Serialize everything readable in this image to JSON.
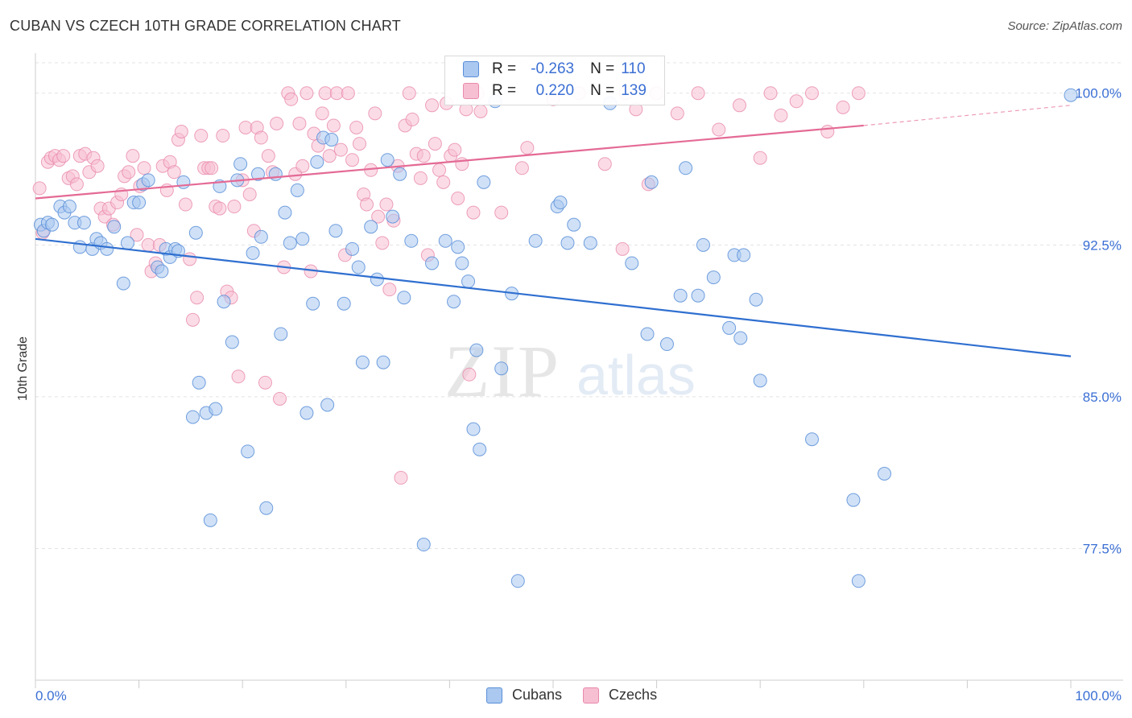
{
  "title": "CUBAN VS CZECH 10TH GRADE CORRELATION CHART",
  "source": "Source: ZipAtlas.com",
  "colors": {
    "cubans_fill": "#aac8f0",
    "cubans_stroke": "#5a8fd8",
    "cubans_line": "#2f6fd0",
    "czechs_fill": "#f7bfd2",
    "czechs_stroke": "#e98aad",
    "czechs_line": "#e46a95",
    "axis_label": "#3b6fd4",
    "grid": "#e3e3e3"
  },
  "legend": {
    "r_label": "R =",
    "n_label": "N =",
    "cubans": {
      "r": "-0.263",
      "n": "110"
    },
    "czechs": {
      "r": "0.220",
      "n": "139"
    }
  },
  "chart_data": {
    "type": "scatter",
    "title": "CUBAN VS CZECH 10TH GRADE CORRELATION CHART",
    "xlabel": "",
    "ylabel": "10th Grade",
    "xlim": [
      0,
      100
    ],
    "ylim": [
      71.0,
      101.5
    ],
    "x_tick_labels": [
      "0.0%",
      "100.0%"
    ],
    "y_ticks": [
      100.0,
      92.5,
      85.0,
      77.5
    ],
    "y_tick_labels": [
      "100.0%",
      "92.5%",
      "85.0%",
      "77.5%"
    ],
    "watermark": "ZIPatlas",
    "series": [
      {
        "name": "Cubans",
        "r": -0.263,
        "n": 110,
        "trend": {
          "x0": 0,
          "y0": 92.8,
          "x1": 100,
          "y1": 87.0
        },
        "points": [
          [
            0.5,
            93.5
          ],
          [
            0.8,
            93.2
          ],
          [
            1.2,
            93.6
          ],
          [
            1.6,
            93.5
          ],
          [
            2.4,
            94.4
          ],
          [
            2.8,
            94.1
          ],
          [
            3.3,
            94.4
          ],
          [
            3.8,
            93.6
          ],
          [
            4.3,
            92.4
          ],
          [
            4.7,
            93.6
          ],
          [
            5.5,
            92.3
          ],
          [
            5.9,
            92.8
          ],
          [
            6.3,
            92.6
          ],
          [
            6.9,
            92.3
          ],
          [
            7.6,
            93.4
          ],
          [
            8.5,
            90.6
          ],
          [
            8.9,
            92.6
          ],
          [
            9.5,
            94.6
          ],
          [
            10.0,
            94.6
          ],
          [
            10.4,
            95.5
          ],
          [
            10.9,
            95.7
          ],
          [
            11.8,
            91.4
          ],
          [
            12.2,
            91.2
          ],
          [
            12.6,
            92.3
          ],
          [
            13.0,
            91.9
          ],
          [
            13.5,
            92.3
          ],
          [
            13.8,
            92.2
          ],
          [
            14.3,
            95.6
          ],
          [
            15.2,
            84.0
          ],
          [
            15.5,
            93.1
          ],
          [
            15.8,
            85.7
          ],
          [
            16.5,
            84.2
          ],
          [
            16.9,
            78.9
          ],
          [
            17.4,
            84.4
          ],
          [
            17.8,
            95.4
          ],
          [
            18.2,
            89.7
          ],
          [
            19.0,
            87.7
          ],
          [
            19.5,
            95.7
          ],
          [
            19.8,
            96.5
          ],
          [
            20.5,
            82.3
          ],
          [
            21.0,
            92.1
          ],
          [
            21.5,
            96.0
          ],
          [
            21.8,
            92.9
          ],
          [
            22.3,
            79.5
          ],
          [
            23.2,
            96.0
          ],
          [
            23.7,
            88.1
          ],
          [
            24.1,
            94.1
          ],
          [
            24.6,
            92.6
          ],
          [
            25.3,
            95.2
          ],
          [
            25.8,
            92.8
          ],
          [
            26.2,
            84.2
          ],
          [
            26.8,
            89.6
          ],
          [
            27.2,
            96.6
          ],
          [
            27.8,
            97.8
          ],
          [
            28.2,
            84.6
          ],
          [
            28.6,
            97.7
          ],
          [
            29.0,
            93.2
          ],
          [
            29.8,
            89.6
          ],
          [
            30.6,
            92.3
          ],
          [
            31.2,
            91.4
          ],
          [
            31.6,
            86.7
          ],
          [
            32.4,
            93.4
          ],
          [
            33.0,
            90.8
          ],
          [
            33.6,
            86.7
          ],
          [
            34.0,
            96.7
          ],
          [
            34.5,
            93.9
          ],
          [
            35.2,
            96.0
          ],
          [
            35.6,
            89.9
          ],
          [
            36.3,
            92.7
          ],
          [
            37.5,
            77.7
          ],
          [
            38.3,
            91.6
          ],
          [
            39.6,
            92.7
          ],
          [
            40.4,
            89.7
          ],
          [
            40.8,
            92.4
          ],
          [
            41.2,
            91.6
          ],
          [
            41.8,
            90.7
          ],
          [
            42.3,
            83.4
          ],
          [
            42.6,
            87.3
          ],
          [
            42.9,
            82.4
          ],
          [
            43.3,
            95.6
          ],
          [
            44.4,
            99.6
          ],
          [
            45.0,
            86.4
          ],
          [
            46.0,
            90.1
          ],
          [
            46.6,
            75.9
          ],
          [
            48.3,
            92.7
          ],
          [
            50.4,
            94.4
          ],
          [
            50.7,
            94.6
          ],
          [
            51.4,
            92.6
          ],
          [
            52.0,
            93.5
          ],
          [
            53.6,
            92.6
          ],
          [
            55.5,
            99.5
          ],
          [
            57.6,
            91.6
          ],
          [
            59.1,
            88.1
          ],
          [
            59.5,
            95.6
          ],
          [
            61.0,
            87.6
          ],
          [
            62.3,
            90.0
          ],
          [
            62.8,
            96.3
          ],
          [
            64.0,
            90.0
          ],
          [
            64.5,
            92.5
          ],
          [
            65.5,
            90.9
          ],
          [
            67.0,
            88.4
          ],
          [
            67.5,
            92.0
          ],
          [
            68.1,
            87.9
          ],
          [
            68.4,
            92.0
          ],
          [
            69.6,
            89.8
          ],
          [
            70.0,
            85.8
          ],
          [
            75.0,
            82.9
          ],
          [
            79.0,
            79.9
          ],
          [
            79.5,
            75.9
          ],
          [
            82.0,
            81.2
          ],
          [
            100.0,
            99.9
          ]
        ]
      },
      {
        "name": "Czechs",
        "r": 0.22,
        "n": 139,
        "trend": {
          "x0": 0,
          "y0": 94.8,
          "x1": 80,
          "y1": 98.4,
          "dashed_to_x": 100,
          "dashed_to_y": 99.4
        },
        "points": [
          [
            0.4,
            95.3
          ],
          [
            0.7,
            93.1
          ],
          [
            1.2,
            96.6
          ],
          [
            1.5,
            96.8
          ],
          [
            1.9,
            96.9
          ],
          [
            2.3,
            96.7
          ],
          [
            2.7,
            96.9
          ],
          [
            3.2,
            95.8
          ],
          [
            3.6,
            95.9
          ],
          [
            4.0,
            95.5
          ],
          [
            4.3,
            96.9
          ],
          [
            4.8,
            97.0
          ],
          [
            5.2,
            96.1
          ],
          [
            5.6,
            96.8
          ],
          [
            6.0,
            96.4
          ],
          [
            6.3,
            94.3
          ],
          [
            6.7,
            93.9
          ],
          [
            7.1,
            94.3
          ],
          [
            7.5,
            93.5
          ],
          [
            7.9,
            94.6
          ],
          [
            8.3,
            95.0
          ],
          [
            8.6,
            95.9
          ],
          [
            9.0,
            96.1
          ],
          [
            9.4,
            96.9
          ],
          [
            9.8,
            93.0
          ],
          [
            10.1,
            95.4
          ],
          [
            10.5,
            96.3
          ],
          [
            10.9,
            92.5
          ],
          [
            11.2,
            91.2
          ],
          [
            11.6,
            91.6
          ],
          [
            12.0,
            92.5
          ],
          [
            12.3,
            96.4
          ],
          [
            12.7,
            95.2
          ],
          [
            13.0,
            96.6
          ],
          [
            13.4,
            96.1
          ],
          [
            13.8,
            97.7
          ],
          [
            14.1,
            98.1
          ],
          [
            14.5,
            94.5
          ],
          [
            14.9,
            91.8
          ],
          [
            15.2,
            88.8
          ],
          [
            15.6,
            89.9
          ],
          [
            16.0,
            97.9
          ],
          [
            16.3,
            96.3
          ],
          [
            16.7,
            96.3
          ],
          [
            17.0,
            96.3
          ],
          [
            17.4,
            94.4
          ],
          [
            17.8,
            94.3
          ],
          [
            18.1,
            97.9
          ],
          [
            18.5,
            90.2
          ],
          [
            18.9,
            89.9
          ],
          [
            19.2,
            94.4
          ],
          [
            19.6,
            86.0
          ],
          [
            20.0,
            95.7
          ],
          [
            20.3,
            98.3
          ],
          [
            20.7,
            95.0
          ],
          [
            21.1,
            93.2
          ],
          [
            21.4,
            98.3
          ],
          [
            21.8,
            97.8
          ],
          [
            22.2,
            85.7
          ],
          [
            22.5,
            96.9
          ],
          [
            22.9,
            96.1
          ],
          [
            23.3,
            98.5
          ],
          [
            23.6,
            84.9
          ],
          [
            24.0,
            91.4
          ],
          [
            24.4,
            100.0
          ],
          [
            24.7,
            99.7
          ],
          [
            25.1,
            96.0
          ],
          [
            25.5,
            98.5
          ],
          [
            25.8,
            96.4
          ],
          [
            26.2,
            100.0
          ],
          [
            26.6,
            91.2
          ],
          [
            26.9,
            98.0
          ],
          [
            27.3,
            97.4
          ],
          [
            27.7,
            99.0
          ],
          [
            28.0,
            100.0
          ],
          [
            28.4,
            96.9
          ],
          [
            28.8,
            98.4
          ],
          [
            29.1,
            100.0
          ],
          [
            29.5,
            97.2
          ],
          [
            29.9,
            92.0
          ],
          [
            30.2,
            100.0
          ],
          [
            30.6,
            96.7
          ],
          [
            31.0,
            98.3
          ],
          [
            31.3,
            97.5
          ],
          [
            31.7,
            95.0
          ],
          [
            32.0,
            94.5
          ],
          [
            32.4,
            96.2
          ],
          [
            32.8,
            99.0
          ],
          [
            33.1,
            93.9
          ],
          [
            33.5,
            92.6
          ],
          [
            33.9,
            94.5
          ],
          [
            34.2,
            90.3
          ],
          [
            34.6,
            93.7
          ],
          [
            35.0,
            96.4
          ],
          [
            35.3,
            81.0
          ],
          [
            35.7,
            98.4
          ],
          [
            36.1,
            100.0
          ],
          [
            36.4,
            98.7
          ],
          [
            36.8,
            97.0
          ],
          [
            37.2,
            95.8
          ],
          [
            37.5,
            96.9
          ],
          [
            37.9,
            92.0
          ],
          [
            38.3,
            99.4
          ],
          [
            38.6,
            97.5
          ],
          [
            39.0,
            96.2
          ],
          [
            39.4,
            95.6
          ],
          [
            39.7,
            99.5
          ],
          [
            40.1,
            96.9
          ],
          [
            40.5,
            97.2
          ],
          [
            40.8,
            94.8
          ],
          [
            41.2,
            96.5
          ],
          [
            41.6,
            99.2
          ],
          [
            41.9,
            86.1
          ],
          [
            42.3,
            94.1
          ],
          [
            42.7,
            100.0
          ],
          [
            43.0,
            99.1
          ],
          [
            45.0,
            94.1
          ],
          [
            47.0,
            96.3
          ],
          [
            47.5,
            97.3
          ],
          [
            50.0,
            99.7
          ],
          [
            52.5,
            100.0
          ],
          [
            55.0,
            96.5
          ],
          [
            56.7,
            92.3
          ],
          [
            57.0,
            100.0
          ],
          [
            58.0,
            99.2
          ],
          [
            59.2,
            95.5
          ],
          [
            60.0,
            100.0
          ],
          [
            62.0,
            99.0
          ],
          [
            64.0,
            100.0
          ],
          [
            66.0,
            98.2
          ],
          [
            68.0,
            99.4
          ],
          [
            70.0,
            96.8
          ],
          [
            71.0,
            100.0
          ],
          [
            72.0,
            98.9
          ],
          [
            73.5,
            99.6
          ],
          [
            75.0,
            100.0
          ],
          [
            76.5,
            98.1
          ],
          [
            78.0,
            99.3
          ],
          [
            79.5,
            100.0
          ]
        ]
      }
    ]
  },
  "bottom_legend": {
    "cubans": "Cubans",
    "czechs": "Czechs"
  }
}
